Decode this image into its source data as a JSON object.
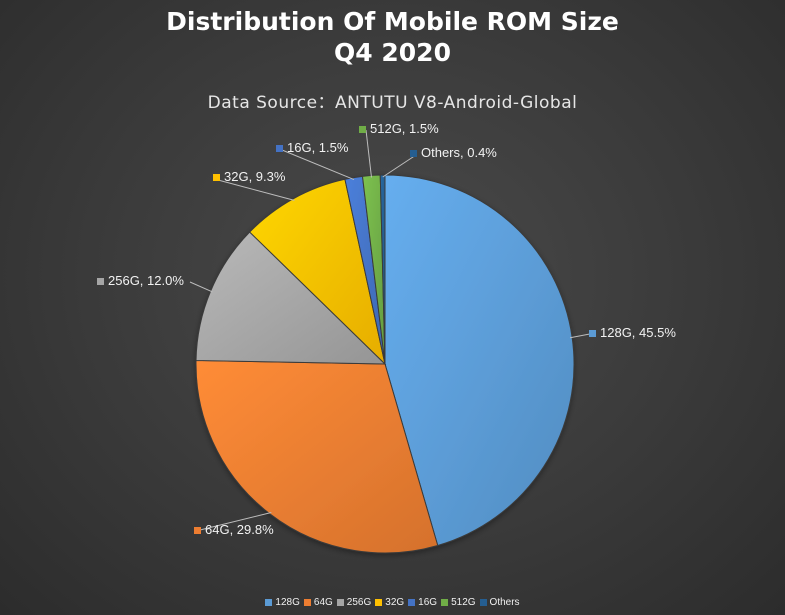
{
  "chart_data": {
    "type": "pie",
    "title": "Distribution Of Mobile ROM Size",
    "title_line2": "Q4 2020",
    "subtitle": "Data Source：ANTUTU V8-Android-Global",
    "legend_position": "bottom",
    "slices": [
      {
        "name": "128G",
        "value": 45.5,
        "label": "128G, 45.5%",
        "color": "#5b9bd5"
      },
      {
        "name": "64G",
        "value": 29.8,
        "label": "64G, 29.8%",
        "color": "#ed7d31"
      },
      {
        "name": "256G",
        "value": 12.0,
        "label": "256G, 12.0%",
        "color": "#a5a5a5"
      },
      {
        "name": "32G",
        "value": 9.3,
        "label": "32G, 9.3%",
        "color": "#ffc000"
      },
      {
        "name": "16G",
        "value": 1.5,
        "label": "16G, 1.5%",
        "color": "#4472c4"
      },
      {
        "name": "512G",
        "value": 1.5,
        "label": "512G, 1.5%",
        "color": "#70ad47"
      },
      {
        "name": "Others",
        "value": 0.4,
        "label": "Others, 0.4%",
        "color": "#255e91"
      }
    ]
  }
}
